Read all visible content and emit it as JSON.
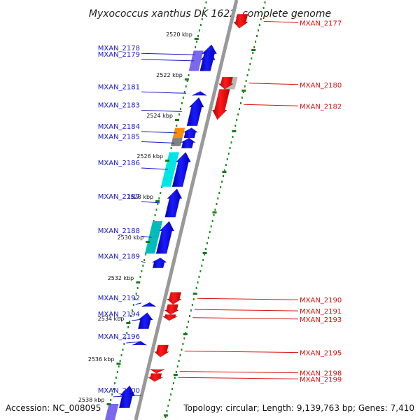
{
  "title": "Myxococcus xanthus DK 1622, complete genome",
  "footer": {
    "accession": "Accession: NC_008095",
    "summary": "Topology: circular; Length: 9,139,763 bp; Genes: 7,410"
  },
  "colors": {
    "forward_label": "#1a1acc",
    "reverse_label": "#dd1111",
    "forward_gene": "#0a0ae0",
    "reverse_gene": "#ee1111",
    "backbone": "#999999",
    "dots": "#228b22"
  },
  "scale_ticks": [
    {
      "kbp": 2520,
      "label": "2520 kbp"
    },
    {
      "kbp": 2522,
      "label": "2522 kbp"
    },
    {
      "kbp": 2524,
      "label": "2524 kbp"
    },
    {
      "kbp": 2526,
      "label": "2526 kbp"
    },
    {
      "kbp": 2528,
      "label": "2528 kbp"
    },
    {
      "kbp": 2530,
      "label": "2530 kbp"
    },
    {
      "kbp": 2532,
      "label": "2532 kbp"
    },
    {
      "kbp": 2534,
      "label": "2534 kbp"
    },
    {
      "kbp": 2536,
      "label": "2536 kbp"
    },
    {
      "kbp": 2538,
      "label": "2538 kbp"
    }
  ],
  "forward_genes": [
    {
      "label": "MXAN_2178",
      "start_kbp": 2520.3,
      "end_kbp": 2521.3
    },
    {
      "label": "MXAN_2179",
      "start_kbp": 2520.6,
      "end_kbp": 2521.6
    },
    {
      "label": "MXAN_2181",
      "start_kbp": 2522.6,
      "end_kbp": 2522.8
    },
    {
      "label": "MXAN_2183",
      "start_kbp": 2522.9,
      "end_kbp": 2524.3
    },
    {
      "label": "MXAN_2184",
      "start_kbp": 2524.4,
      "end_kbp": 2524.9
    },
    {
      "label": "MXAN_2185",
      "start_kbp": 2524.9,
      "end_kbp": 2525.4
    },
    {
      "label": "MXAN_2186",
      "start_kbp": 2525.6,
      "end_kbp": 2527.3
    },
    {
      "label": "MXAN_2187",
      "start_kbp": 2527.4,
      "end_kbp": 2528.8
    },
    {
      "label": "MXAN_2188",
      "start_kbp": 2529.0,
      "end_kbp": 2530.6
    },
    {
      "label": "MXAN_2189",
      "start_kbp": 2530.8,
      "end_kbp": 2531.3
    },
    {
      "label": "MXAN_2192",
      "start_kbp": 2533.0,
      "end_kbp": 2533.2
    },
    {
      "label": "MXAN_2194",
      "start_kbp": 2533.5,
      "end_kbp": 2534.3
    },
    {
      "label": "MXAN_2196",
      "start_kbp": 2534.9,
      "end_kbp": 2535.1
    },
    {
      "label": "MXAN_2200",
      "start_kbp": 2537.1,
      "end_kbp": 2538.2
    }
  ],
  "reverse_genes": [
    {
      "label": "MXAN_2177",
      "start_kbp": 2518.8,
      "end_kbp": 2519.5
    },
    {
      "label": "MXAN_2180",
      "start_kbp": 2521.9,
      "end_kbp": 2522.5
    },
    {
      "label": "MXAN_2182",
      "start_kbp": 2522.5,
      "end_kbp": 2524.0
    },
    {
      "label": "MXAN_2190",
      "start_kbp": 2532.5,
      "end_kbp": 2533.1
    },
    {
      "label": "MXAN_2191",
      "start_kbp": 2533.1,
      "end_kbp": 2533.6
    },
    {
      "label": "MXAN_2193",
      "start_kbp": 2533.6,
      "end_kbp": 2533.9
    },
    {
      "label": "MXAN_2195",
      "start_kbp": 2535.1,
      "end_kbp": 2535.7
    },
    {
      "label": "MXAN_2198",
      "start_kbp": 2536.3,
      "end_kbp": 2536.5
    },
    {
      "label": "MXAN_2199",
      "start_kbp": 2536.5,
      "end_kbp": 2536.9
    }
  ],
  "cog_blocks": [
    {
      "kbp_start": 2520.6,
      "kbp_end": 2521.6,
      "color": "#7b68ee"
    },
    {
      "kbp_start": 2524.4,
      "kbp_end": 2524.9,
      "color": "#ff8c00"
    },
    {
      "kbp_start": 2524.9,
      "kbp_end": 2525.3,
      "color": "#808080"
    },
    {
      "kbp_start": 2525.6,
      "kbp_end": 2527.3,
      "color": "#00e5e5"
    },
    {
      "kbp_start": 2529.0,
      "kbp_end": 2530.6,
      "color": "#00bcbc"
    },
    {
      "kbp_start": 2538.0,
      "kbp_end": 2539.0,
      "color": "#7b68ee"
    },
    {
      "kbp_start": 2521.9,
      "kbp_end": 2522.5,
      "color": "#b8b8b8"
    }
  ]
}
